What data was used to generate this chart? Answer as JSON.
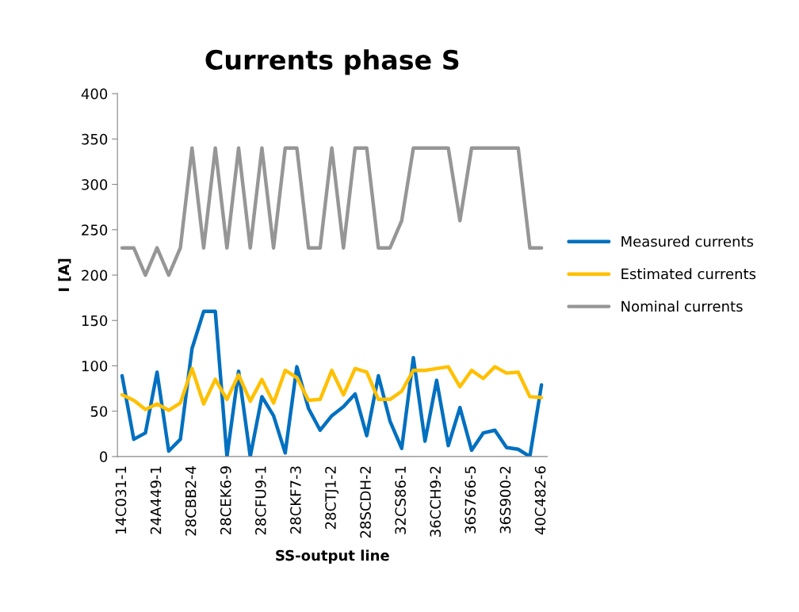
{
  "chart_data": {
    "type": "line",
    "title": "Currents phase S",
    "xlabel": "SS-output line",
    "ylabel": "I [A]",
    "categories": [
      "14C031-1",
      null,
      null,
      "24A449-1",
      null,
      null,
      "28CBB2-4",
      null,
      null,
      "28CEK6-9",
      null,
      null,
      "28CFU9-1",
      null,
      null,
      "28CKF7-3",
      null,
      null,
      "28CTJ1-2",
      null,
      null,
      "28SCDH-2",
      null,
      null,
      "32CS86-1",
      null,
      null,
      "36CCH9-2",
      null,
      null,
      "36S766-5",
      null,
      null,
      "36S900-2",
      null,
      null,
      "40C482-6"
    ],
    "series": [
      {
        "name": "Measured currents",
        "color": "#0070c0",
        "values": [
          89,
          19,
          26,
          93,
          6,
          19,
          119,
          160,
          160,
          0,
          94,
          0,
          66,
          45,
          4,
          99,
          53,
          29,
          45,
          55,
          69,
          23,
          89,
          39,
          9,
          109,
          17,
          84,
          12,
          54,
          7,
          26,
          29,
          10,
          8,
          0,
          79
        ]
      },
      {
        "name": "Estimated currents",
        "color": "#ffc000",
        "values": [
          68,
          62,
          52,
          58,
          51,
          59,
          97,
          58,
          85,
          63,
          90,
          61,
          85,
          59,
          95,
          87,
          62,
          63,
          95,
          68,
          97,
          93,
          63,
          63,
          72,
          95,
          95,
          97,
          99,
          77,
          95,
          86,
          99,
          92,
          93,
          66,
          65
        ]
      },
      {
        "name": "Nominal currents",
        "color": "#969696",
        "values": [
          230,
          230,
          200,
          230,
          200,
          230,
          340,
          230,
          340,
          230,
          340,
          230,
          340,
          230,
          340,
          340,
          230,
          230,
          340,
          230,
          340,
          340,
          230,
          230,
          260,
          340,
          340,
          340,
          340,
          260,
          340,
          340,
          340,
          340,
          340,
          230,
          230
        ]
      }
    ],
    "ylim": [
      0,
      400
    ],
    "yticks": [
      0,
      50,
      100,
      150,
      200,
      250,
      300,
      350,
      400
    ],
    "grid": false,
    "legend": "right",
    "marker": "none",
    "line_style": "solid"
  }
}
